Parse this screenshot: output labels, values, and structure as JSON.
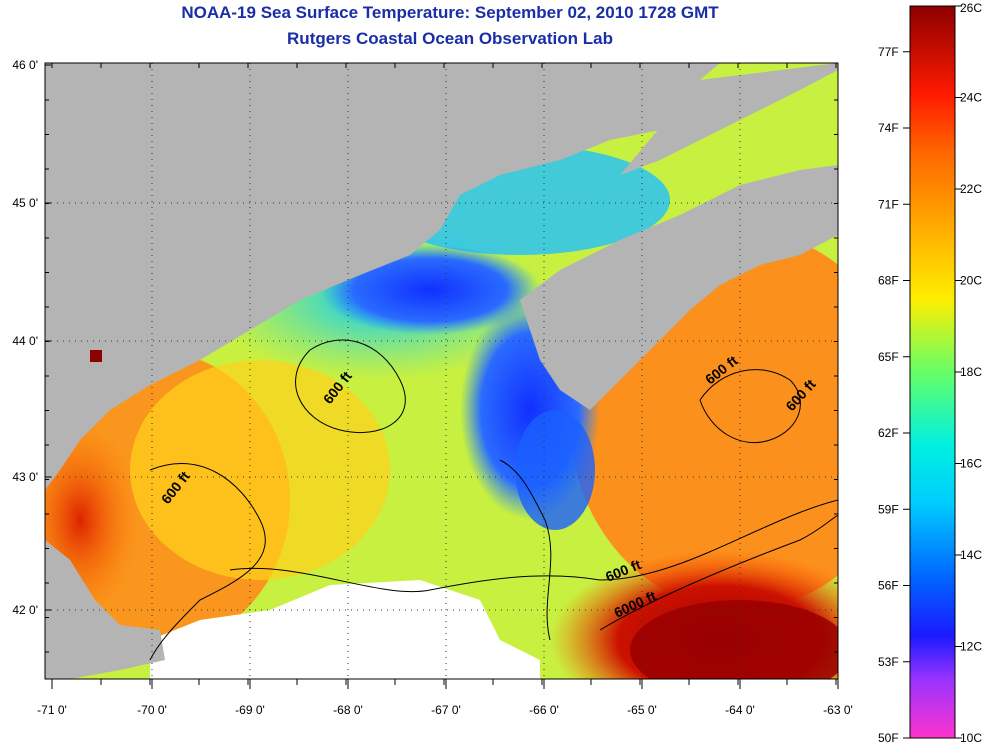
{
  "title": "NOAA-19 Sea Surface Temperature:  September 02, 2010 1728 GMT",
  "subtitle": "Rutgers Coastal Ocean Observation Lab",
  "lat_labels": [
    "46 0'",
    "45 0'",
    "44 0'",
    "43 0'",
    "42 0'"
  ],
  "lon_labels": [
    "-71 0'",
    "-70 0'",
    "-69 0'",
    "-68 0'",
    "-67 0'",
    "-66 0'",
    "-65 0'",
    "-64 0'",
    "-63 0'"
  ],
  "contour_labels": [
    "600 ft",
    "600 ft",
    "600 ft",
    "600 ft",
    "600 ft",
    "6000 ft"
  ],
  "colorbar": {
    "celsius": [
      "26C",
      "24C",
      "22C",
      "20C",
      "18C",
      "16C",
      "14C",
      "12C",
      "10C"
    ],
    "fahrenheit": [
      "77F",
      "74F",
      "71F",
      "68F",
      "65F",
      "62F",
      "59F",
      "56F",
      "53F",
      "50F"
    ]
  },
  "colors": {
    "title": "#1a2ea8",
    "land": "#b4b4b4",
    "no_data": "#ffffff"
  }
}
